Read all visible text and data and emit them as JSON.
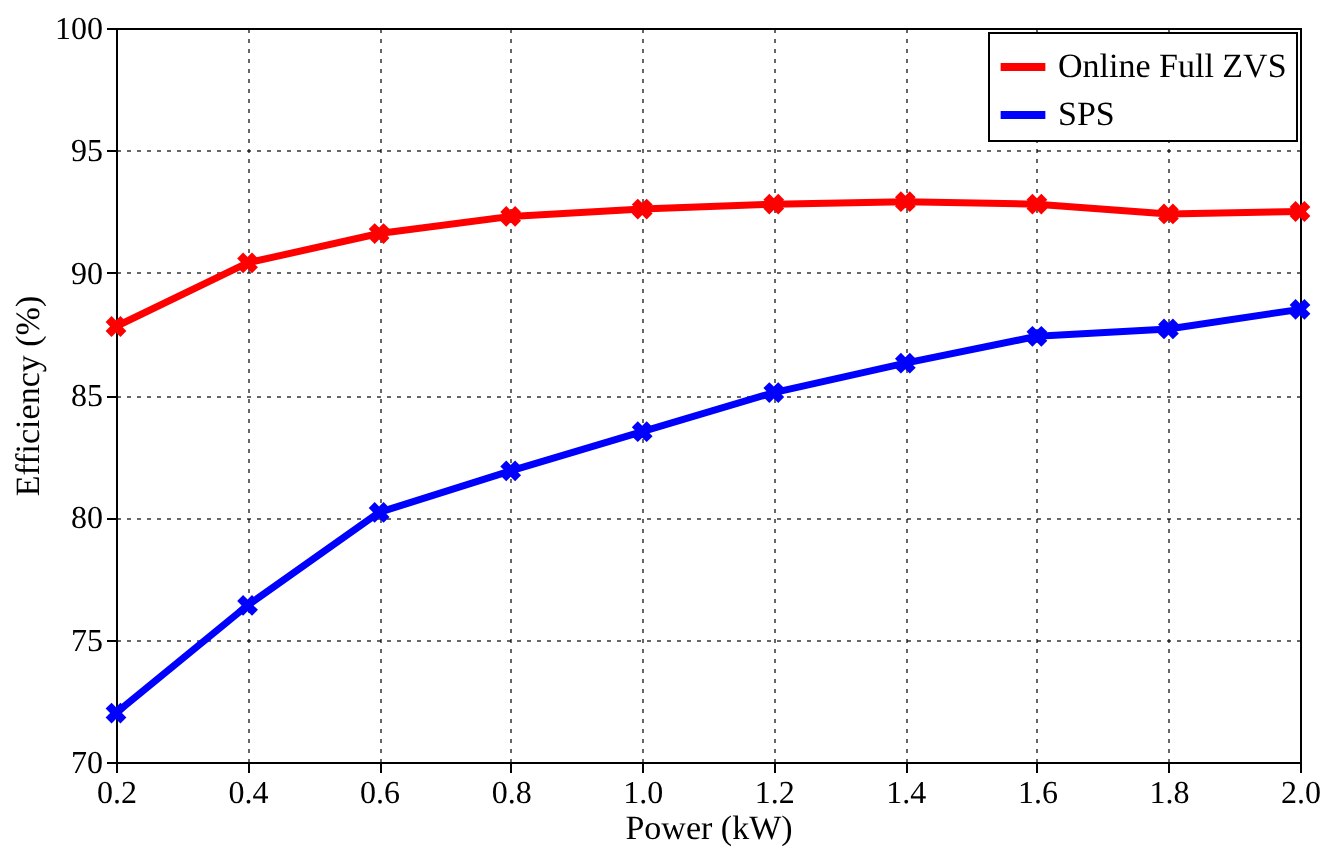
{
  "chart_data": {
    "type": "line",
    "xlabel": "Power (kW)",
    "ylabel": "Efficiency (%)",
    "x": [
      0.2,
      0.4,
      0.6,
      0.8,
      1.0,
      1.2,
      1.4,
      1.6,
      1.8,
      2.0
    ],
    "series": [
      {
        "name": "Online Full ZVS",
        "color": "#ff0000",
        "values": [
          87.8,
          90.4,
          91.6,
          92.3,
          92.6,
          92.8,
          92.9,
          92.8,
          92.4,
          92.5
        ]
      },
      {
        "name": "SPS",
        "color": "#0000ff",
        "values": [
          72.0,
          76.4,
          80.2,
          81.9,
          83.5,
          85.1,
          86.3,
          87.4,
          87.7,
          88.5
        ]
      }
    ],
    "xlim": [
      0.2,
      2.0
    ],
    "xticks": [
      {
        "value": 0.2,
        "label": "0.2"
      },
      {
        "value": 0.4,
        "label": "0.4"
      },
      {
        "value": 0.6,
        "label": "0.6"
      },
      {
        "value": 0.8,
        "label": "0.8"
      },
      {
        "value": 1.0,
        "label": "1.0"
      },
      {
        "value": 1.2,
        "label": "1.2"
      },
      {
        "value": 1.4,
        "label": "1.4"
      },
      {
        "value": 1.6,
        "label": "1.6"
      },
      {
        "value": 1.8,
        "label": "1.8"
      },
      {
        "value": 2.0,
        "label": "2.0"
      }
    ],
    "ylim": [
      70,
      100
    ],
    "yticks": [
      70,
      75,
      80,
      85,
      90,
      95,
      100
    ],
    "grid": true,
    "legend": "top right",
    "marker": "cross",
    "line_style": "solid"
  }
}
